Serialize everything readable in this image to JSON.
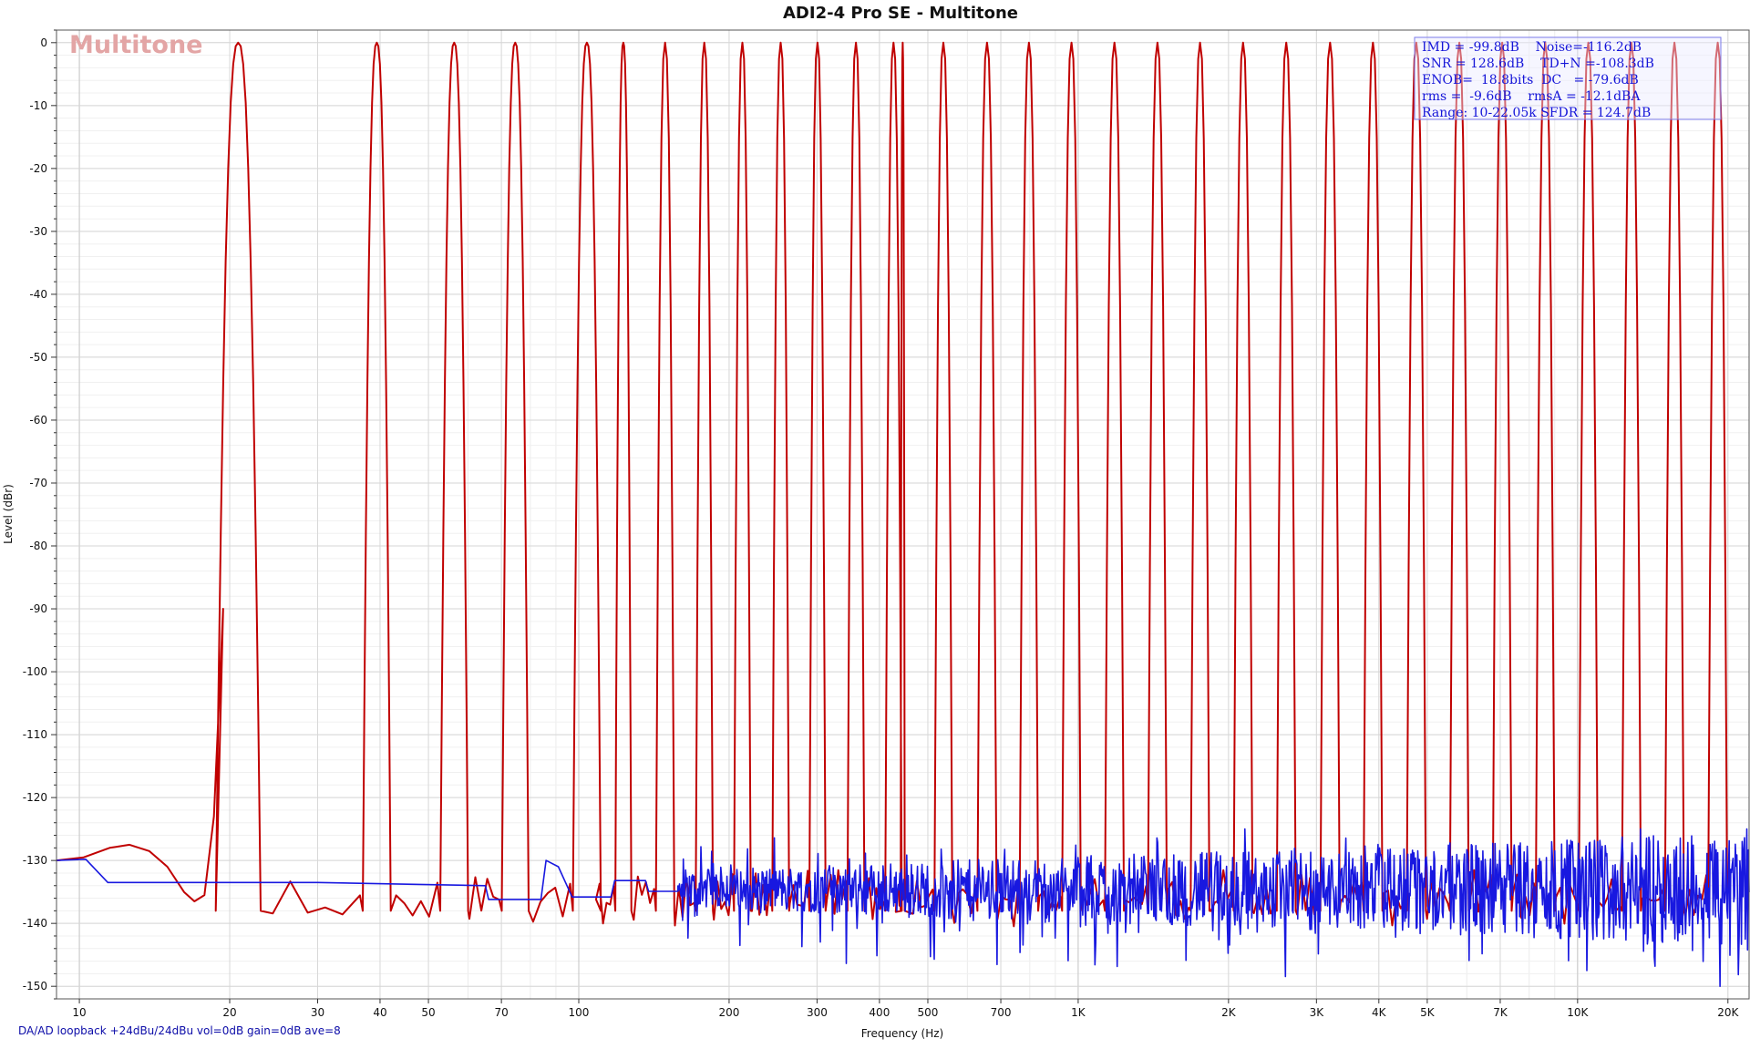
{
  "chart_data": {
    "type": "line",
    "title": "ADI2-4 Pro SE - Multitone",
    "xlabel": "Frequency (Hz)",
    "ylabel": "Level (dBr)",
    "xscale": "log",
    "xlim": [
      9,
      22050
    ],
    "ylim": [
      -152,
      2
    ],
    "grid": true,
    "x_ticks": [
      10,
      20,
      30,
      40,
      50,
      70,
      100,
      200,
      300,
      400,
      500,
      700,
      1000,
      2000,
      3000,
      4000,
      5000,
      7000,
      10000,
      20000
    ],
    "x_tick_labels": [
      "10",
      "20",
      "30",
      "40",
      "50",
      "70",
      "100",
      "200",
      "300",
      "400",
      "500",
      "700",
      "1K",
      "2K",
      "3K",
      "4K",
      "5K",
      "7K",
      "10K",
      "20K"
    ],
    "y_ticks": [
      0,
      -10,
      -20,
      -30,
      -40,
      -50,
      -60,
      -70,
      -80,
      -90,
      -100,
      -110,
      -120,
      -130,
      -140,
      -150
    ],
    "y_tick_labels": [
      "0",
      "-10",
      "-20",
      "-30",
      "-40",
      "-50",
      "-60",
      "-70",
      "-80",
      "-90",
      "-100",
      "-110",
      "-120",
      "-130",
      "-140",
      "-150"
    ],
    "watermark": "Multitone",
    "footer": "DA/AD loopback +24dBu/24dBu vol=0dB gain=0dB ave=8",
    "stats": [
      "IMD = -99.8dB    Noise=-116.2dB",
      "SNR = 128.6dB    TD+N =-108.3dB",
      "ENOB=  18.8bits  DC   = -79.6dB",
      "rms =  -9.6dB    rmsA = -12.1dBA",
      "Range: 10-22.05k SFDR = 124.7dB"
    ],
    "series": [
      {
        "color": "#c00000",
        "style": "multitone",
        "tone_peak_db": 0,
        "tone_freqs": [
          20.8,
          39.4,
          56.3,
          74.6,
          103.8,
          122.8,
          148.9,
          178.4,
          212.6,
          253.7,
          300.6,
          358.9,
          426.8,
          445.3,
          537.1,
          656.8,
          796.8,
          969.6,
          1182,
          1441,
          1754,
          2139,
          2610,
          3194,
          3893,
          4754,
          5796,
          7064,
          8614,
          10508,
          12817,
          15630,
          19081
        ],
        "floor_db": -133.5
      },
      {
        "color": "#1818e0",
        "style": "noise-floor",
        "floor_db": -134.5,
        "low_freq_points": [
          [
            9,
            -130
          ],
          [
            10.3,
            -129.8
          ],
          [
            11.4,
            -133.5
          ],
          [
            30,
            -133.5
          ],
          [
            48,
            -133.8
          ],
          [
            65,
            -134
          ],
          [
            66,
            -136.2
          ],
          [
            84,
            -136.2
          ],
          [
            86,
            -130
          ],
          [
            91,
            -131
          ],
          [
            97,
            -135.8
          ],
          [
            116,
            -135.8
          ],
          [
            118,
            -133.2
          ],
          [
            136,
            -133.2
          ],
          [
            138,
            -134.9
          ],
          [
            158,
            -134.9
          ]
        ]
      }
    ]
  }
}
